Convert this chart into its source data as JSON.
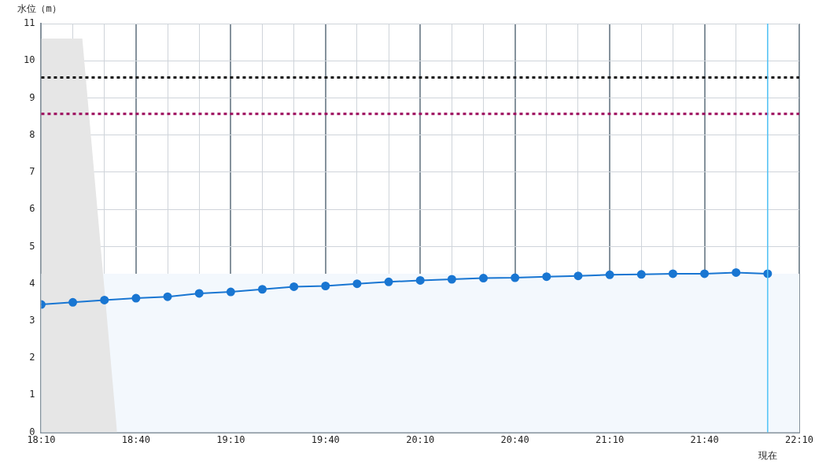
{
  "chart_data": {
    "type": "line",
    "ylabel": "水位（m）",
    "xlim": [
      18.1667,
      22.1667
    ],
    "xticks": [
      {
        "value": 18.1667,
        "label": "18:10"
      },
      {
        "value": 18.3333,
        "label": null
      },
      {
        "value": 18.5,
        "label": null
      },
      {
        "value": 18.6667,
        "label": "18:40"
      },
      {
        "value": 18.8333,
        "label": null
      },
      {
        "value": 19,
        "label": null
      },
      {
        "value": 19.1667,
        "label": "19:10"
      },
      {
        "value": 19.3333,
        "label": null
      },
      {
        "value": 19.5,
        "label": null
      },
      {
        "value": 19.6667,
        "label": "19:40"
      },
      {
        "value": 19.8333,
        "label": null
      },
      {
        "value": 20,
        "label": null
      },
      {
        "value": 20.1667,
        "label": "20:10"
      },
      {
        "value": 20.3333,
        "label": null
      },
      {
        "value": 20.5,
        "label": null
      },
      {
        "value": 20.6667,
        "label": "20:40"
      },
      {
        "value": 20.8333,
        "label": null
      },
      {
        "value": 21,
        "label": null
      },
      {
        "value": 21.1667,
        "label": "21:10"
      },
      {
        "value": 21.3333,
        "label": null
      },
      {
        "value": 21.5,
        "label": null
      },
      {
        "value": 21.6667,
        "label": "21:40"
      },
      {
        "value": 21.8333,
        "label": null
      },
      {
        "value": 22,
        "label": null
      },
      {
        "value": 22.1667,
        "label": "22:10"
      }
    ],
    "ylim": [
      0,
      11
    ],
    "yticks": [
      0,
      1,
      2,
      3,
      4,
      5,
      6,
      7,
      8,
      9,
      10,
      11
    ],
    "grid": true,
    "legend": false,
    "series": [
      {
        "type": "area",
        "color": "#e6e6e6",
        "marker": "none",
        "x": [
          18.1667,
          18.3833,
          18.5667
        ],
        "values": [
          10.6,
          10.6,
          0
        ]
      },
      {
        "color": "#1976d2",
        "marker": "circle",
        "x": [
          18.1667,
          18.3333,
          18.5,
          18.6667,
          18.8333,
          19,
          19.1667,
          19.3333,
          19.5,
          19.6667,
          19.8333,
          20,
          20.1667,
          20.3333,
          20.5,
          20.6667,
          20.8333,
          21,
          21.1667,
          21.3333,
          21.5,
          21.6667,
          21.8333,
          22
        ],
        "values": [
          3.44,
          3.5,
          3.56,
          3.61,
          3.65,
          3.74,
          3.78,
          3.85,
          3.92,
          3.94,
          4.0,
          4.05,
          4.09,
          4.12,
          4.15,
          4.16,
          4.19,
          4.21,
          4.24,
          4.25,
          4.27,
          4.27,
          4.3,
          4.27
        ]
      }
    ],
    "bands": [
      {
        "axis": "y",
        "from": 0,
        "to": 4.27,
        "color": "#f3f8fd"
      }
    ],
    "ref_lines": [
      {
        "axis": "y",
        "value": 9.55,
        "color": "#111111",
        "line_style": "dotted"
      },
      {
        "axis": "y",
        "value": 8.57,
        "color": "#9c0c5c",
        "line_style": "dotted"
      },
      {
        "axis": "x",
        "value": 22,
        "label": "現在",
        "color": "#4fc3f7",
        "line_style": "solid"
      }
    ]
  }
}
